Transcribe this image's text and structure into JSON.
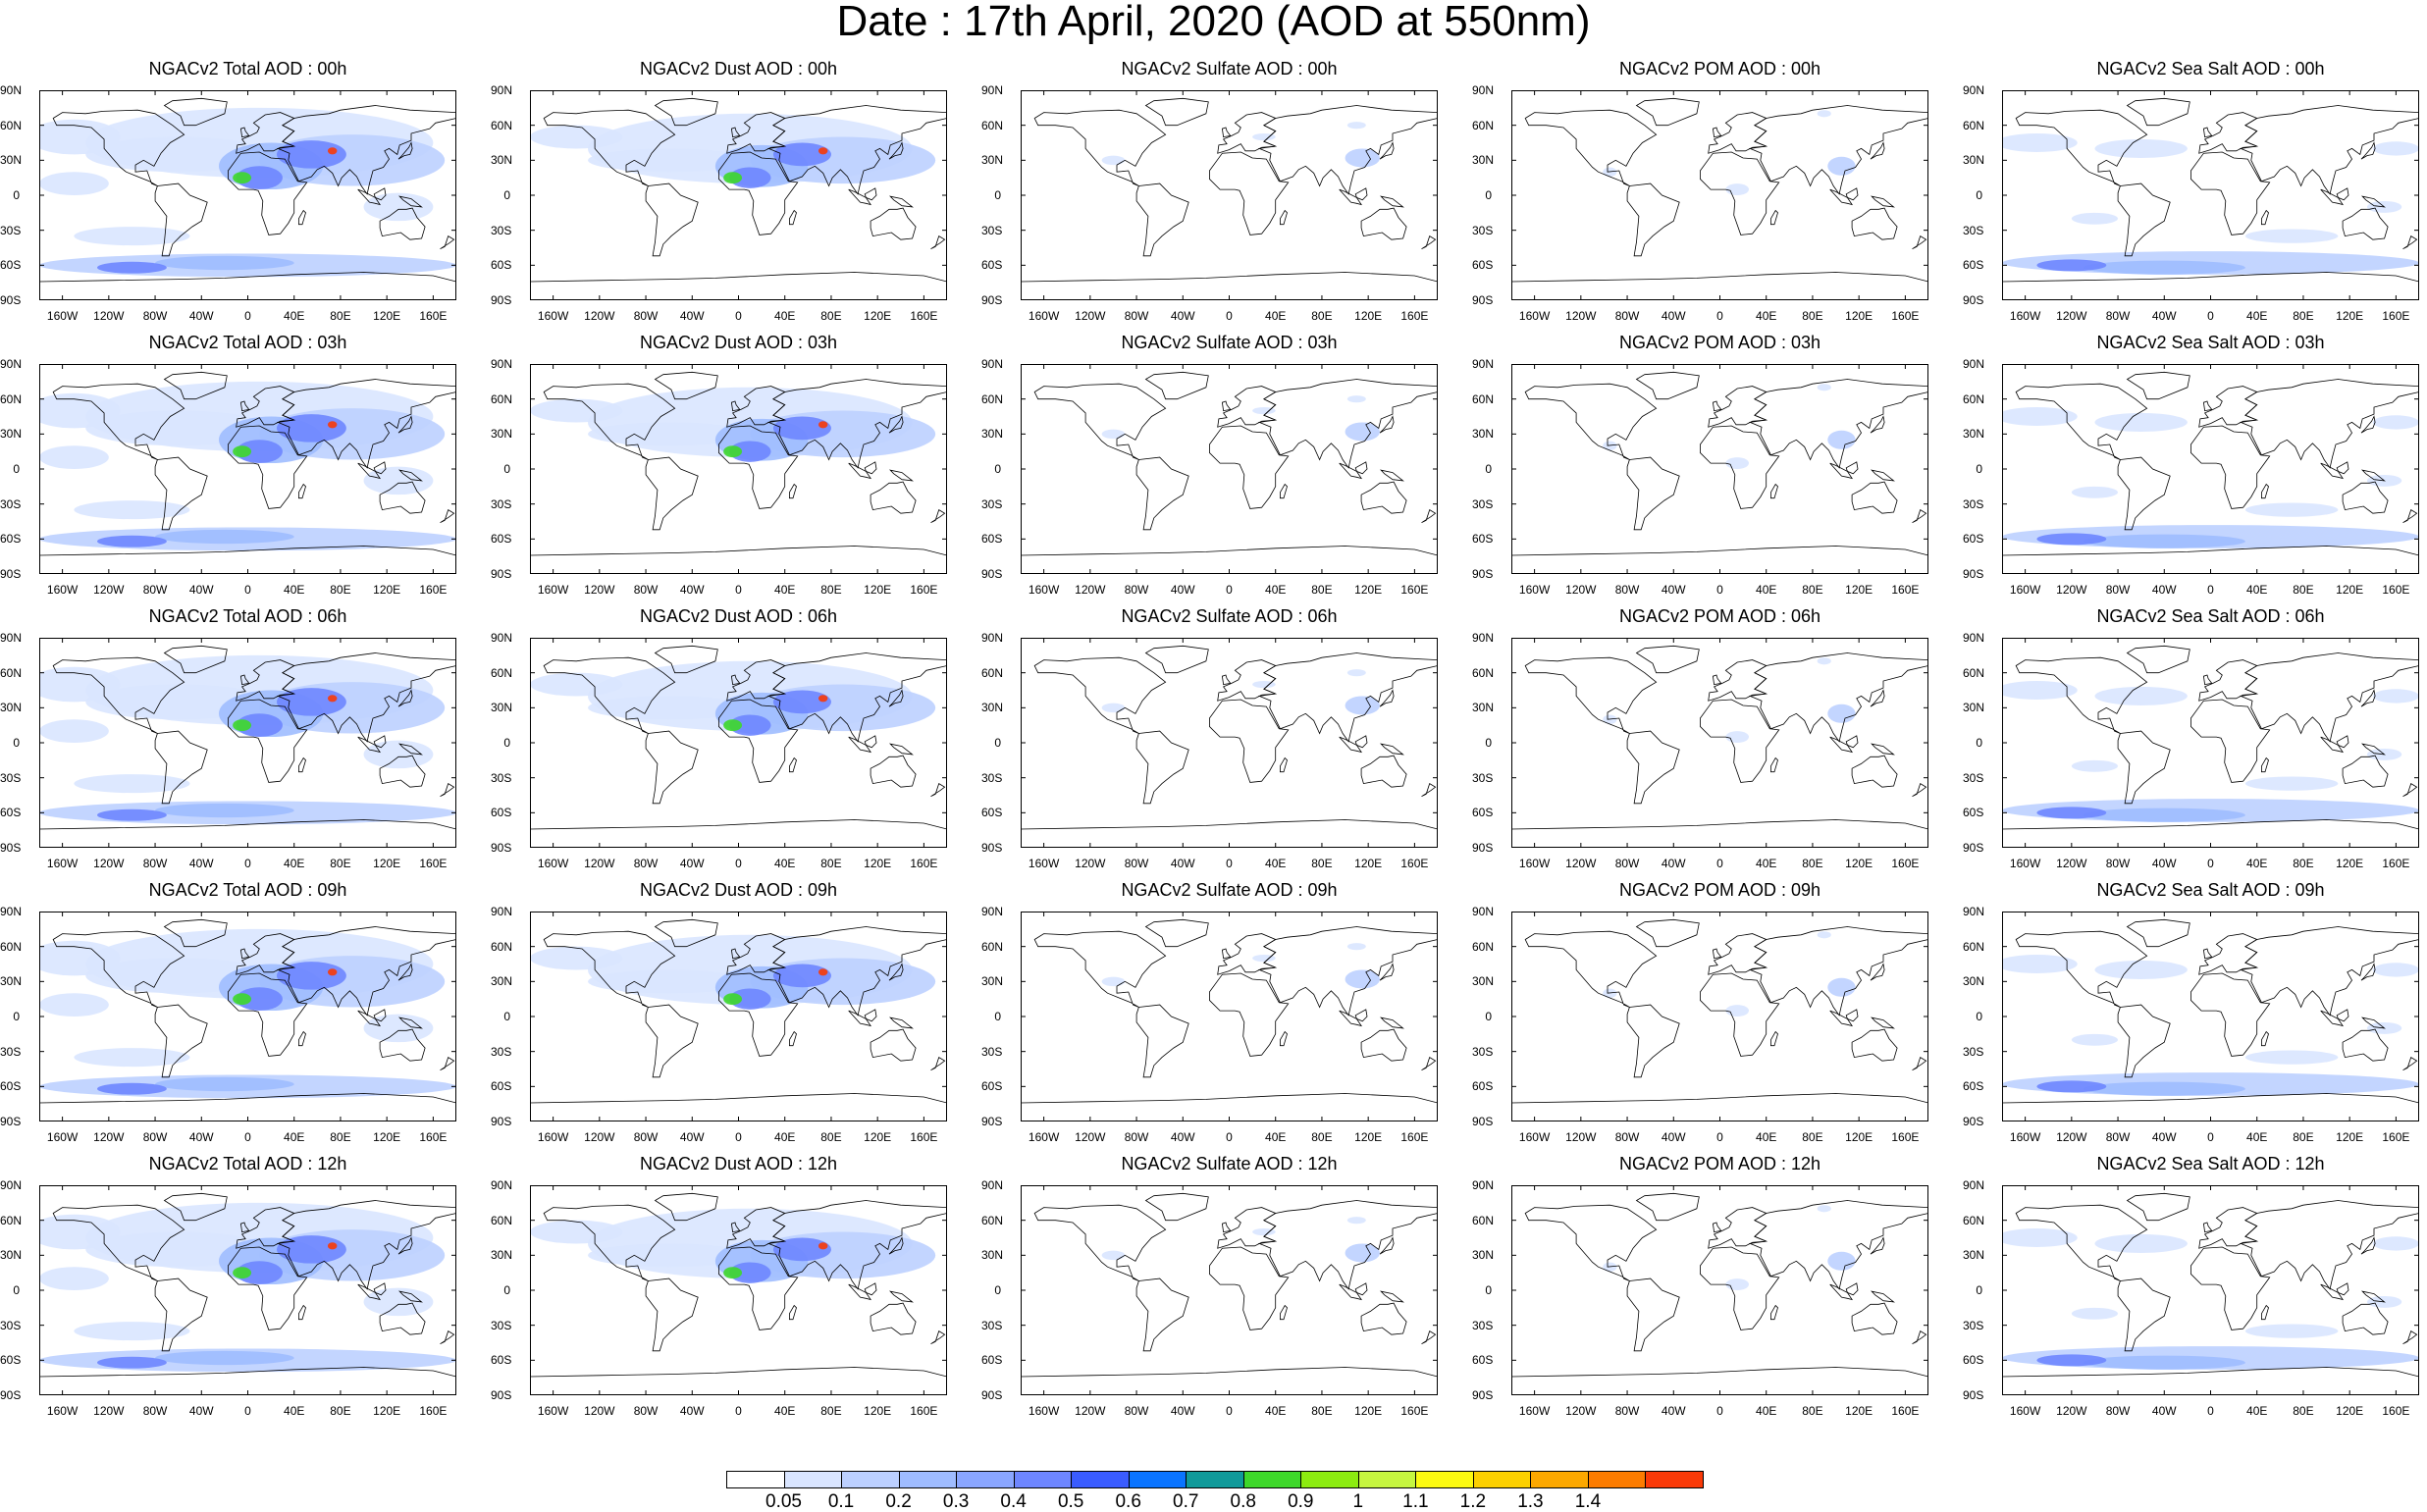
{
  "title": "Date : 17th April, 2020 (AOD at 550nm)",
  "lat_ticks": [
    "90N",
    "60N",
    "30N",
    "0",
    "30S",
    "60S",
    "90S"
  ],
  "lon_ticks": [
    "160W",
    "120W",
    "80W",
    "40W",
    "0",
    "40E",
    "80E",
    "120E",
    "160E"
  ],
  "panels": [
    {
      "title": "NGACv2 Total AOD : 00h",
      "species": "total"
    },
    {
      "title": "NGACv2 Dust AOD : 00h",
      "species": "dust"
    },
    {
      "title": "NGACv2 Sulfate AOD : 00h",
      "species": "sulfate"
    },
    {
      "title": "NGACv2 POM AOD : 00h",
      "species": "pom"
    },
    {
      "title": "NGACv2 Sea Salt AOD : 00h",
      "species": "seasalt"
    },
    {
      "title": "NGACv2 Total AOD : 03h",
      "species": "total"
    },
    {
      "title": "NGACv2 Dust AOD : 03h",
      "species": "dust"
    },
    {
      "title": "NGACv2 Sulfate AOD : 03h",
      "species": "sulfate"
    },
    {
      "title": "NGACv2 POM AOD : 03h",
      "species": "pom"
    },
    {
      "title": "NGACv2 Sea Salt AOD : 03h",
      "species": "seasalt"
    },
    {
      "title": "NGACv2 Total AOD : 06h",
      "species": "total"
    },
    {
      "title": "NGACv2 Dust AOD : 06h",
      "species": "dust"
    },
    {
      "title": "NGACv2 Sulfate AOD : 06h",
      "species": "sulfate"
    },
    {
      "title": "NGACv2 POM AOD : 06h",
      "species": "pom"
    },
    {
      "title": "NGACv2 Sea Salt AOD : 06h",
      "species": "seasalt"
    },
    {
      "title": "NGACv2 Total AOD : 09h",
      "species": "total"
    },
    {
      "title": "NGACv2 Dust AOD : 09h",
      "species": "dust"
    },
    {
      "title": "NGACv2 Sulfate AOD : 09h",
      "species": "sulfate"
    },
    {
      "title": "NGACv2 POM AOD : 09h",
      "species": "pom"
    },
    {
      "title": "NGACv2 Sea Salt  AOD : 09h",
      "species": "seasalt"
    },
    {
      "title": "NGACv2 Total AOD  : 12h",
      "species": "total"
    },
    {
      "title": "NGACv2 Dust AOD : 12h",
      "species": "dust"
    },
    {
      "title": "NGACv2 Sulfate AOD : 12h",
      "species": "sulfate"
    },
    {
      "title": "NGACv2 POM  AOD : 12h",
      "species": "pom"
    },
    {
      "title": "NGACv2 Sea Salt  AOD : 12h",
      "species": "seasalt"
    }
  ],
  "colorbar": {
    "labels": [
      "0.05",
      "0.1",
      "0.2",
      "0.3",
      "0.4",
      "0.5",
      "0.6",
      "0.7",
      "0.8",
      "0.9",
      "1",
      "1.1",
      "1.2",
      "1.3",
      "1.4"
    ],
    "colors": [
      "#ffffff",
      "#d9e5ff",
      "#bcd0ff",
      "#9fbcff",
      "#8aa6ff",
      "#6e86ff",
      "#3a5cff",
      "#0a74ff",
      "#109a9a",
      "#3ed82a",
      "#8cec10",
      "#c6f640",
      "#fcfa10",
      "#fcd000",
      "#fca800",
      "#fc7c00",
      "#fa3a08"
    ]
  },
  "map_colors": {
    "ocean_bg": "#ffffff",
    "light": "#d9e5ff",
    "mid": "#bcd0ff",
    "strong": "#9fbcff",
    "deep": "#6e86ff",
    "dust_core": "#3ed82a",
    "hot": "#fa3a08",
    "coast": "#000000"
  }
}
